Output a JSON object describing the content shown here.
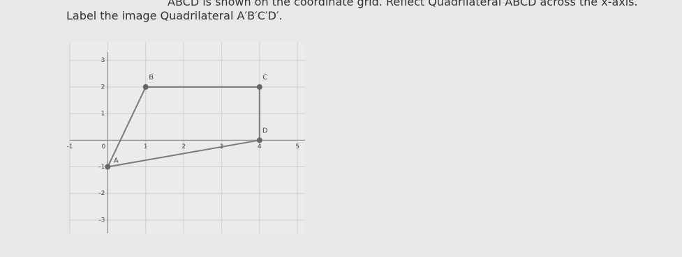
{
  "question": {
    "line1": "ABCD is shown on the coordinate grid. Reflect Quadrilateral ABCD across the x-axis.",
    "line2": "Label the image Quadrilateral A′B′C′D′."
  },
  "chart_data": {
    "type": "polygon",
    "x": [
      0,
      1,
      4,
      4
    ],
    "y": [
      -1,
      2,
      2,
      0
    ],
    "point_labels": [
      "A",
      "B",
      "C",
      "D"
    ],
    "color": "#7a7a7a",
    "xlim": [
      -1,
      5.2
    ],
    "ylim": [
      -3.5,
      3.7
    ],
    "xticks": [
      -1,
      0,
      1,
      2,
      3,
      4,
      5
    ],
    "yticks": [
      -3,
      -2,
      -1,
      1,
      2,
      3
    ],
    "grid": true
  }
}
